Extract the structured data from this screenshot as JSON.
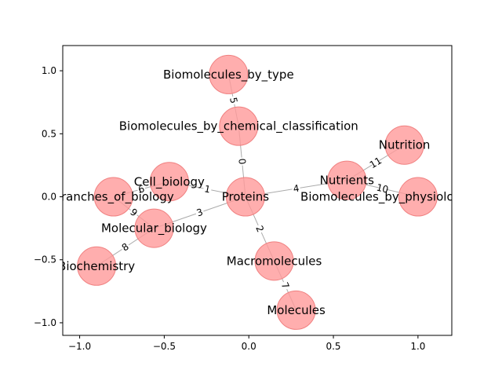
{
  "chart_data": {
    "type": "network",
    "xlim": [
      -1.1,
      1.2
    ],
    "ylim": [
      -1.1,
      1.2
    ],
    "x_ticks": [
      {
        "value": -1.0,
        "label": "−1.0"
      },
      {
        "value": -0.5,
        "label": "−0.5"
      },
      {
        "value": 0.0,
        "label": "0.0"
      },
      {
        "value": 0.5,
        "label": "0.5"
      },
      {
        "value": 1.0,
        "label": "1.0"
      }
    ],
    "y_ticks": [
      {
        "value": 1.0,
        "label": "1.0"
      },
      {
        "value": 0.5,
        "label": "0.5"
      },
      {
        "value": 0.0,
        "label": "0.0"
      },
      {
        "value": -0.5,
        "label": "−0.5"
      },
      {
        "value": -1.0,
        "label": "−1.0"
      }
    ],
    "colors": {
      "node": "#ff9a9a",
      "node_edge": "#f08080",
      "edge": "#aaaaaa"
    },
    "nodes": [
      {
        "id": "Proteins",
        "x": -0.02,
        "y": 0.0
      },
      {
        "id": "Biomolecules_by_chemical_classification",
        "x": -0.06,
        "y": 0.56
      },
      {
        "id": "Biomolecules_by_type",
        "x": -0.12,
        "y": 0.97
      },
      {
        "id": "Macromolecules",
        "x": 0.15,
        "y": -0.51
      },
      {
        "id": "Molecules",
        "x": 0.28,
        "y": -0.9
      },
      {
        "id": "Nutrients",
        "x": 0.58,
        "y": 0.13
      },
      {
        "id": "Nutrition",
        "x": 0.92,
        "y": 0.41
      },
      {
        "id": "Biomolecules_by_physiological_function",
        "x": 1.0,
        "y": 0.0
      },
      {
        "id": "Cell_biology",
        "x": -0.47,
        "y": 0.12
      },
      {
        "id": "Molecular_biology",
        "x": -0.56,
        "y": -0.25
      },
      {
        "id": "Branches_of_biology",
        "x": -0.8,
        "y": 0.0
      },
      {
        "id": "Biochemistry",
        "x": -0.9,
        "y": -0.55
      }
    ],
    "edges": [
      {
        "source": "Proteins",
        "target": "Biomolecules_by_chemical_classification",
        "label": "0"
      },
      {
        "source": "Proteins",
        "target": "Cell_biology",
        "label": "1"
      },
      {
        "source": "Proteins",
        "target": "Macromolecules",
        "label": "2"
      },
      {
        "source": "Proteins",
        "target": "Molecular_biology",
        "label": "3"
      },
      {
        "source": "Proteins",
        "target": "Nutrients",
        "label": "4"
      },
      {
        "source": "Biomolecules_by_chemical_classification",
        "target": "Biomolecules_by_type",
        "label": "5"
      },
      {
        "source": "Cell_biology",
        "target": "Branches_of_biology",
        "label": "6"
      },
      {
        "source": "Macromolecules",
        "target": "Molecules",
        "label": "7"
      },
      {
        "source": "Molecular_biology",
        "target": "Biochemistry",
        "label": "8"
      },
      {
        "source": "Molecular_biology",
        "target": "Branches_of_biology",
        "label": "9"
      },
      {
        "source": "Nutrients",
        "target": "Biomolecules_by_physiological_function",
        "label": "10"
      },
      {
        "source": "Nutrients",
        "target": "Nutrition",
        "label": "11"
      }
    ]
  }
}
